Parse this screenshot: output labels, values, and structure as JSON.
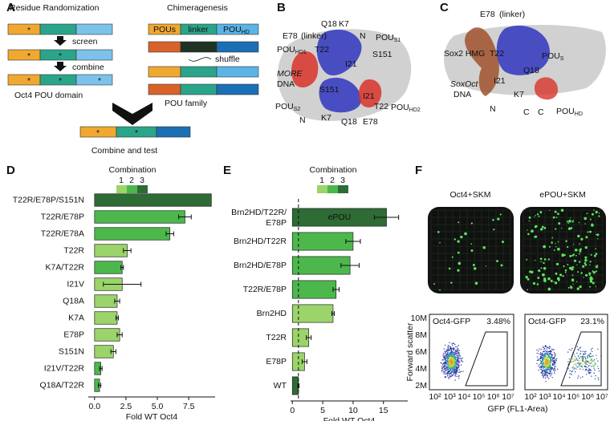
{
  "panels": [
    "A",
    "B",
    "C",
    "D",
    "E",
    "F"
  ],
  "panel_a": {
    "randomization_title": "Residue Randomization",
    "chimeragenesis_title": "Chimeragenesis",
    "star": "*",
    "screen": "screen",
    "combine": "combine",
    "oct4_label": "Oct4 POU domain",
    "pous": "POUs",
    "linker": "linker",
    "pouhd": {
      "text": "POU",
      "sub": "HD"
    },
    "shuffle": "shuffle",
    "family_label": "POU family",
    "combine_test": "Combine and test"
  },
  "panel_b": {
    "labels": [
      {
        "text": "E78",
        "color": "#111"
      },
      {
        "text": "(linker)",
        "color": "#b04dc7"
      },
      {
        "text": "Q18",
        "color": "#111"
      },
      {
        "text": "K7",
        "color": "#111"
      },
      {
        "text": "N",
        "color": "#111"
      },
      {
        "text": "POU",
        "sub": "S1",
        "color": "#d8342a"
      },
      {
        "text": "T22",
        "color": "#111"
      },
      {
        "text": "POU",
        "sub": "HD1",
        "color": "#d8342a"
      },
      {
        "text": "S151",
        "color": "#111"
      },
      {
        "text": "I21",
        "color": "#111"
      },
      {
        "text": "MORE",
        "color": "#d8342a",
        "style": "italic"
      },
      {
        "text": "DNA",
        "color": "#d8342a"
      },
      {
        "text": "S151",
        "color": "#111"
      },
      {
        "text": "I21",
        "color": "#111"
      },
      {
        "text": "POU",
        "sub": "S2",
        "color": "#d8342a"
      },
      {
        "text": "T22",
        "color": "#111"
      },
      {
        "text": "POU",
        "sub": "HD2",
        "color": "#d8342a"
      },
      {
        "text": "N",
        "color": "#111"
      },
      {
        "text": "K7",
        "color": "#111"
      },
      {
        "text": "Q18",
        "color": "#111"
      },
      {
        "text": "E78",
        "color": "#111"
      }
    ]
  },
  "panel_c": {
    "labels": [
      {
        "text": "E78",
        "color": "#111"
      },
      {
        "text": "(linker)",
        "color": "#d8342a"
      },
      {
        "text": "Sox2 HMG",
        "color": "#d8342a"
      },
      {
        "text": "T22",
        "color": "#111"
      },
      {
        "text": "POU",
        "sub": "S",
        "color": "#d8342a"
      },
      {
        "text": "Q18",
        "color": "#111"
      },
      {
        "text": "I21",
        "color": "#111"
      },
      {
        "text": "SoxOct",
        "color": "#d8342a",
        "style": "italic"
      },
      {
        "text": "DNA",
        "color": "#d8342a"
      },
      {
        "text": "K7",
        "color": "#111"
      },
      {
        "text": "N",
        "color": "#111"
      },
      {
        "text": "C",
        "color": "#111"
      },
      {
        "text": "C",
        "color": "#111"
      },
      {
        "text": "POU",
        "sub": "HD",
        "color": "#d8342a"
      }
    ]
  },
  "chart_data": [
    {
      "type": "barh",
      "categories": [
        "T22R/E78P/S151N",
        "T22R/E78P",
        "T22R/E78A",
        "T22R",
        "K7A/T22R",
        "I21V",
        "Q18A",
        "K7A",
        "E78P",
        "S151N",
        "I21V/T22R",
        "Q18A/T22R"
      ],
      "values": [
        9.3,
        7.2,
        6.0,
        2.6,
        2.2,
        2.2,
        1.8,
        1.8,
        2.0,
        1.5,
        0.5,
        0.4
      ],
      "errors": [
        0,
        0.5,
        0.3,
        0.3,
        0.1,
        1.5,
        0.2,
        0.1,
        0.2,
        0.2,
        0.1,
        0.1
      ],
      "bar_colors": [
        "#2e6b35",
        "#4cb84c",
        "#4cb84c",
        "#9bd46a",
        "#4cb84c",
        "#9bd46a",
        "#9bd46a",
        "#9bd46a",
        "#9bd46a",
        "#9bd46a",
        "#4cb84c",
        "#4cb84c"
      ],
      "xlim": [
        -0.5,
        9.6
      ],
      "xticks": [
        {
          "value": 0,
          "label": "0.0"
        },
        2.5,
        {
          "value": 5,
          "label": "5.0"
        },
        7.5
      ],
      "xlabel": "Fold WT Oct4",
      "legend": {
        "title": "Combination",
        "labels": [
          "1",
          "2",
          "3"
        ],
        "colors": [
          "#9bd46a",
          "#4cb84c",
          "#2e6b35"
        ]
      }
    },
    {
      "type": "barh",
      "categories": [
        "Brn2HD/T22R/ E78P",
        "Brn2HD/T22R",
        "Brn2HD/E78P",
        "T22R/E78P",
        "Brn2HD",
        "T22R",
        "E78P",
        "WT"
      ],
      "values": [
        15.5,
        10.0,
        9.5,
        7.2,
        6.7,
        2.7,
        2.0,
        1.0
      ],
      "errors": [
        2.0,
        1.2,
        1.5,
        0.5,
        0.2,
        0.4,
        0.4,
        0.1
      ],
      "bar_colors": [
        "#2e6b35",
        "#4cb84c",
        "#4cb84c",
        "#4cb84c",
        "#9bd46a",
        "#9bd46a",
        "#9bd46a",
        "#2e6b35"
      ],
      "xlim": [
        -0.3,
        19
      ],
      "xticks": [
        0,
        5,
        10,
        15
      ],
      "xlabel": "Fold WT Oct4",
      "annotation": "ePOU",
      "reference_x": 1,
      "legend": {
        "title": "Combination",
        "labels": [
          "1",
          "2",
          "3"
        ],
        "colors": [
          "#9bd46a",
          "#4cb84c",
          "#2e6b35"
        ]
      }
    }
  ],
  "panel_f": {
    "plate_labels": [
      "Oct4+SKM",
      "ePOU+SKM"
    ],
    "gates": [
      {
        "name": "Oct4-GFP",
        "percent": "3.48%"
      },
      {
        "name": "Oct4-GFP",
        "percent": "23.1%"
      }
    ],
    "ylabel": "Forward scatter",
    "yticks": [
      "10M",
      "8M",
      "6M",
      "4M",
      "2M"
    ],
    "xticks": [
      "10²",
      "10³",
      "10⁴",
      "10⁵",
      "10⁶",
      "10⁷"
    ],
    "xlabel": "GFP (FL1-Area)"
  }
}
